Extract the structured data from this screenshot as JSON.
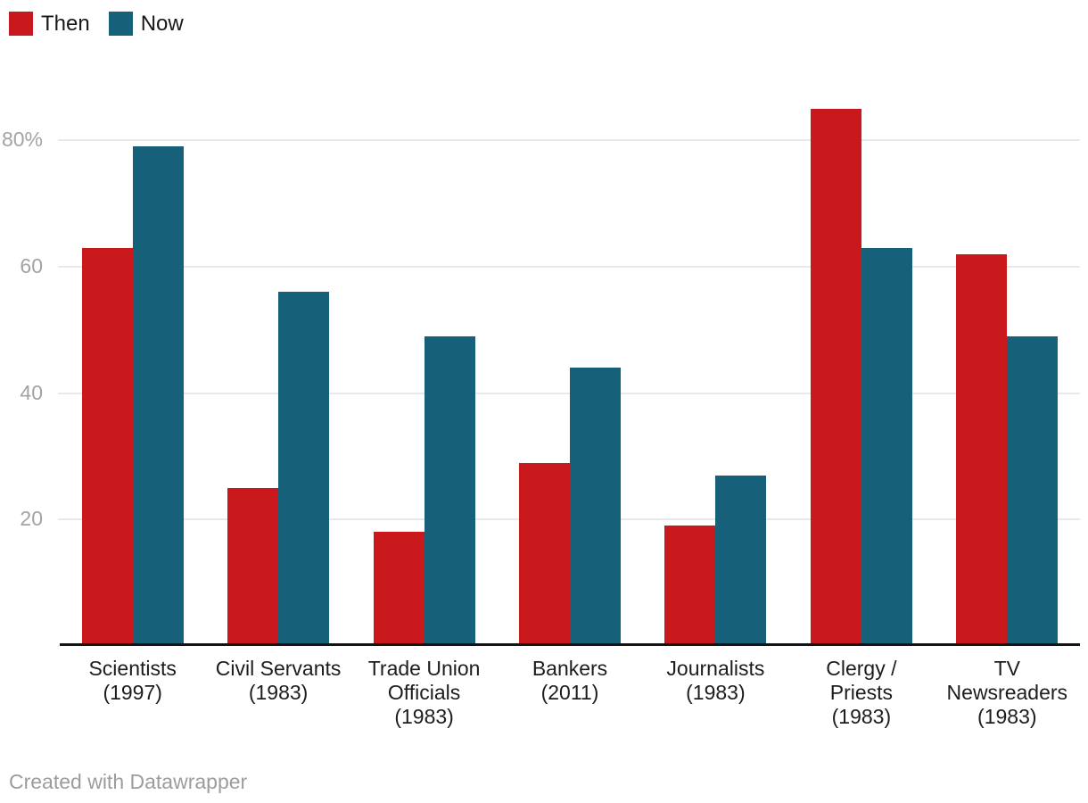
{
  "legend": {
    "items": [
      {
        "label": "Then",
        "color": "#c9191d"
      },
      {
        "label": "Now",
        "color": "#17607a"
      }
    ]
  },
  "footer": {
    "text": "Created with Datawrapper"
  },
  "colors": {
    "then": "#c9191d",
    "now": "#17607a",
    "gridline": "#e9e9e9",
    "axis_line": "#141414",
    "tick_label": "#a3a3a3",
    "category_label": "#1d1d1d",
    "footer_text": "#9c9c9c",
    "background": "#ffffff"
  },
  "chart_data": {
    "type": "bar",
    "grouped": true,
    "title": "",
    "xlabel": "",
    "ylabel": "",
    "unit": "%",
    "grid": "horizontal",
    "legend_position": "top-left",
    "ylim": [
      0,
      88
    ],
    "categories": [
      "Scientists (1997)",
      "Civil Servants (1983)",
      "Trade Union Officials (1983)",
      "Bankers (2011)",
      "Journalists (1983)",
      "Clergy / Priests (1983)",
      "TV Newsreaders (1983)"
    ],
    "category_lines": [
      [
        "Scientists",
        "(1997)"
      ],
      [
        "Civil Servants",
        "(1983)"
      ],
      [
        "Trade Union",
        "Officials",
        "(1983)"
      ],
      [
        "Bankers",
        "(2011)"
      ],
      [
        "Journalists",
        "(1983)"
      ],
      [
        "Clergy /",
        "Priests",
        "(1983)"
      ],
      [
        "TV",
        "Newsreaders",
        "(1983)"
      ]
    ],
    "series": [
      {
        "name": "Then",
        "color": "#c9191d",
        "values": [
          63,
          25,
          18,
          29,
          19,
          85,
          62
        ]
      },
      {
        "name": "Now",
        "color": "#17607a",
        "values": [
          79,
          56,
          49,
          44,
          27,
          63,
          49
        ]
      }
    ],
    "y_ticks": [
      {
        "value": 20,
        "label": "20"
      },
      {
        "value": 40,
        "label": "40"
      },
      {
        "value": 60,
        "label": "60"
      },
      {
        "value": 80,
        "label": "80%"
      }
    ]
  }
}
